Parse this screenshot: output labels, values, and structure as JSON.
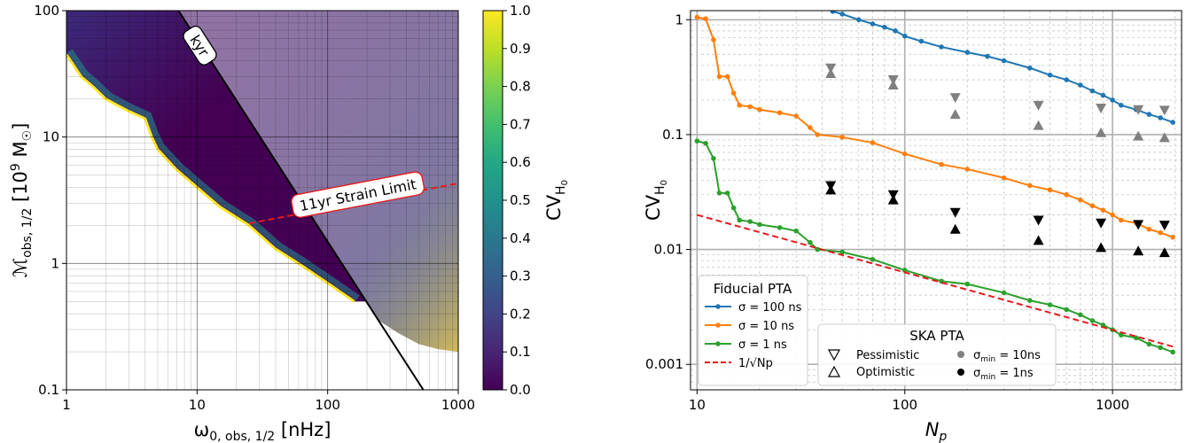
{
  "chart_data": [
    {
      "type": "heatmap",
      "xlabel": "ω0, obs, 1/2 [nHz]",
      "ylabel": "Mobs, 1/2 [10⁹ M☉]",
      "x_scale": "log",
      "y_scale": "log",
      "xlim": [
        1,
        1000
      ],
      "ylim": [
        0.1,
        100
      ],
      "x_ticks": [
        {
          "v": 1,
          "label": "1"
        },
        {
          "v": 10,
          "label": "10"
        },
        {
          "v": 100,
          "label": "100"
        },
        {
          "v": 1000,
          "label": "1000"
        }
      ],
      "y_ticks": [
        {
          "v": 0.1,
          "label": "0.1"
        },
        {
          "v": 1,
          "label": "1"
        },
        {
          "v": 10,
          "label": "10"
        },
        {
          "v": 100,
          "label": "100"
        }
      ],
      "grid": true,
      "colorbar": {
        "label": "CV_H0",
        "range": [
          0,
          1
        ],
        "ticks": [
          "0.0",
          "0.1",
          "0.2",
          "0.3",
          "0.4",
          "0.5",
          "0.6",
          "0.7",
          "0.8",
          "0.9",
          "1.0"
        ],
        "colormap": "viridis"
      },
      "lower_boundary": [
        [
          1,
          45
        ],
        [
          1.3,
          30
        ],
        [
          1.6,
          25
        ],
        [
          2,
          20
        ],
        [
          3,
          16
        ],
        [
          4,
          14
        ],
        [
          4.5,
          10
        ],
        [
          5,
          8
        ],
        [
          7,
          5.5
        ],
        [
          10,
          4
        ],
        [
          15,
          2.8
        ],
        [
          25,
          2
        ],
        [
          40,
          1.3
        ],
        [
          60,
          1
        ],
        [
          100,
          0.7
        ],
        [
          160,
          0.5
        ],
        [
          250,
          0.35
        ],
        [
          350,
          0.28
        ],
        [
          500,
          0.23
        ],
        [
          700,
          0.21
        ],
        [
          1000,
          0.2
        ]
      ],
      "lines": [
        {
          "name": "kyr",
          "style": "solid",
          "color": "#000000",
          "points": [
            [
              7.2,
              100
            ],
            [
              540,
              0.1
            ]
          ]
        },
        {
          "name": "11yr Strain Limit",
          "style": "dashed",
          "color": "#e41a1c",
          "points": [
            [
              25,
              2.07
            ],
            [
              1000,
              4.3
            ]
          ]
        }
      ],
      "annotations": [
        {
          "text": "kyr",
          "at": [
            10.5,
            53
          ]
        },
        {
          "text": "11yr Strain Limit",
          "at": [
            170,
            3.5
          ]
        }
      ]
    },
    {
      "type": "line",
      "xlabel": "Np",
      "ylabel": "CV_H0",
      "x_scale": "log",
      "y_scale": "log",
      "xlim": [
        9.3,
        2150
      ],
      "ylim": [
        0.0006,
        1.2
      ],
      "x_ticks": [
        {
          "v": 10,
          "label": "10"
        },
        {
          "v": 100,
          "label": "100"
        },
        {
          "v": 1000,
          "label": "1000"
        }
      ],
      "y_ticks": [
        {
          "v": 0.001,
          "label": "0.001"
        },
        {
          "v": 0.01,
          "label": "0.01"
        },
        {
          "v": 0.1,
          "label": "0.1"
        },
        {
          "v": 1,
          "label": "1"
        }
      ],
      "grid": true,
      "series": [
        {
          "name": "σ = 100 ns",
          "color": "#1f77b4",
          "points": [
            [
              45,
              1.18
            ],
            [
              50,
              1.12
            ],
            [
              60,
              1.0
            ],
            [
              70,
              0.92
            ],
            [
              80,
              0.86
            ],
            [
              90,
              0.8
            ],
            [
              100,
              0.72
            ],
            [
              120,
              0.65
            ],
            [
              150,
              0.58
            ],
            [
              200,
              0.52
            ],
            [
              250,
              0.48
            ],
            [
              300,
              0.44
            ],
            [
              400,
              0.38
            ],
            [
              500,
              0.33
            ],
            [
              600,
              0.3
            ],
            [
              700,
              0.27
            ],
            [
              800,
              0.24
            ],
            [
              900,
              0.22
            ],
            [
              1000,
              0.2
            ],
            [
              1100,
              0.18
            ],
            [
              1300,
              0.165
            ],
            [
              1500,
              0.15
            ],
            [
              1700,
              0.14
            ],
            [
              1950,
              0.128
            ]
          ]
        },
        {
          "name": "σ = 10 ns",
          "color": "#ff7f0e",
          "points": [
            [
              10,
              1.05
            ],
            [
              11,
              1.02
            ],
            [
              12,
              0.67
            ],
            [
              12.8,
              0.32
            ],
            [
              14,
              0.32
            ],
            [
              15,
              0.23
            ],
            [
              16,
              0.18
            ],
            [
              18,
              0.175
            ],
            [
              20,
              0.165
            ],
            [
              25,
              0.155
            ],
            [
              30,
              0.145
            ],
            [
              35,
              0.115
            ],
            [
              38,
              0.1
            ],
            [
              50,
              0.095
            ],
            [
              70,
              0.085
            ],
            [
              100,
              0.068
            ],
            [
              150,
              0.055
            ],
            [
              200,
              0.05
            ],
            [
              300,
              0.042
            ],
            [
              400,
              0.036
            ],
            [
              500,
              0.033
            ],
            [
              600,
              0.03
            ],
            [
              700,
              0.027
            ],
            [
              800,
              0.024
            ],
            [
              900,
              0.022
            ],
            [
              1000,
              0.02
            ],
            [
              1100,
              0.018
            ],
            [
              1300,
              0.017
            ],
            [
              1500,
              0.015
            ],
            [
              1700,
              0.014
            ],
            [
              1950,
              0.0128
            ]
          ]
        },
        {
          "name": "σ = 1 ns",
          "color": "#2ca02c",
          "points": [
            [
              10,
              0.088
            ],
            [
              11,
              0.084
            ],
            [
              12,
              0.062
            ],
            [
              12.8,
              0.031
            ],
            [
              14,
              0.031
            ],
            [
              15,
              0.023
            ],
            [
              16,
              0.018
            ],
            [
              18,
              0.0175
            ],
            [
              20,
              0.0165
            ],
            [
              25,
              0.0155
            ],
            [
              30,
              0.0145
            ],
            [
              35,
              0.0115
            ],
            [
              38,
              0.01
            ],
            [
              50,
              0.0095
            ],
            [
              70,
              0.0082
            ],
            [
              100,
              0.0066
            ],
            [
              150,
              0.0053
            ],
            [
              200,
              0.005
            ],
            [
              300,
              0.0042
            ],
            [
              400,
              0.0036
            ],
            [
              500,
              0.0033
            ],
            [
              600,
              0.003
            ],
            [
              700,
              0.0027
            ],
            [
              800,
              0.0024
            ],
            [
              900,
              0.0022
            ],
            [
              1000,
              0.002
            ],
            [
              1100,
              0.0018
            ],
            [
              1300,
              0.0017
            ],
            [
              1500,
              0.0015
            ],
            [
              1700,
              0.0014
            ],
            [
              1950,
              0.00128
            ]
          ]
        },
        {
          "name": "1/√Np",
          "color": "#e41a1c",
          "style": "dashed",
          "points": [
            [
              10,
              0.02
            ],
            [
              2000,
              0.00141
            ]
          ]
        }
      ],
      "ska_markers": [
        {
          "np": 44,
          "pess_grey": 0.38,
          "opt_grey": 0.34,
          "pess_black": 0.036,
          "opt_black": 0.033
        },
        {
          "np": 88,
          "pess_grey": 0.3,
          "opt_grey": 0.27,
          "pess_black": 0.03,
          "opt_black": 0.027
        },
        {
          "np": 175,
          "pess_grey": 0.21,
          "opt_grey": 0.15,
          "pess_black": 0.021,
          "opt_black": 0.015
        },
        {
          "np": 440,
          "pess_grey": 0.18,
          "opt_grey": 0.12,
          "pess_black": 0.018,
          "opt_black": 0.012
        },
        {
          "np": 880,
          "pess_grey": 0.17,
          "opt_grey": 0.104,
          "pess_black": 0.017,
          "opt_black": 0.0104
        },
        {
          "np": 1330,
          "pess_grey": 0.165,
          "opt_grey": 0.097,
          "pess_black": 0.0165,
          "opt_black": 0.0097
        },
        {
          "np": 1780,
          "pess_grey": 0.163,
          "opt_grey": 0.094,
          "pess_black": 0.0163,
          "opt_black": 0.0094
        }
      ],
      "legend_fiducial": {
        "title": "Fiducial PTA",
        "entries": [
          "σ = 100 ns",
          "σ = 10 ns",
          "σ = 1 ns",
          "1/√Np"
        ]
      },
      "legend_ska": {
        "title": "SKA PTA",
        "entries": [
          "Pessimistic",
          "Optimistic",
          "σmin = 10ns",
          "σmin = 1ns"
        ],
        "grey": "#808080",
        "black": "#000000"
      }
    }
  ]
}
